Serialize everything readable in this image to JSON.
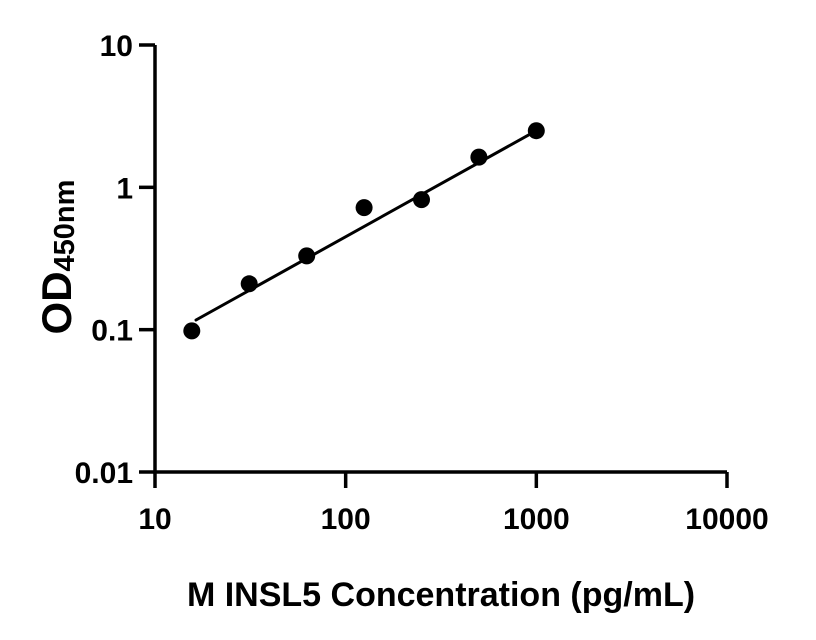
{
  "chart_data": {
    "type": "scatter",
    "title": "",
    "xlabel": "M INSL5 Concentration (pg/mL)",
    "ylabel_main": "OD",
    "ylabel_sub": "450nm",
    "x_scale": "log",
    "y_scale": "log",
    "xlim": [
      10,
      10000
    ],
    "ylim": [
      0.01,
      10
    ],
    "grid": false,
    "legend_position": "none",
    "x_ticks": [
      {
        "value": 10,
        "label": "10"
      },
      {
        "value": 100,
        "label": "100"
      },
      {
        "value": 1000,
        "label": "1000"
      },
      {
        "value": 10000,
        "label": "10000"
      }
    ],
    "y_ticks": [
      {
        "value": 10,
        "label": "10"
      },
      {
        "value": 1,
        "label": "1"
      },
      {
        "value": 0.1,
        "label": "0.1"
      },
      {
        "value": 0.01,
        "label": "0.01"
      }
    ],
    "series": [
      {
        "name": "standard-curve-points",
        "type": "scatter",
        "marker": "circle",
        "x": [
          15.6,
          31.2,
          62.5,
          125,
          250,
          500,
          1000
        ],
        "od": [
          0.098,
          0.21,
          0.33,
          0.72,
          0.82,
          1.63,
          2.5
        ]
      },
      {
        "name": "fit-line",
        "type": "line",
        "x": [
          16.4,
          1000
        ],
        "od": [
          0.117,
          2.5
        ]
      }
    ],
    "colors": {
      "axis": "#000000",
      "marker": "#000000",
      "line": "#000000",
      "background": "#ffffff"
    }
  }
}
